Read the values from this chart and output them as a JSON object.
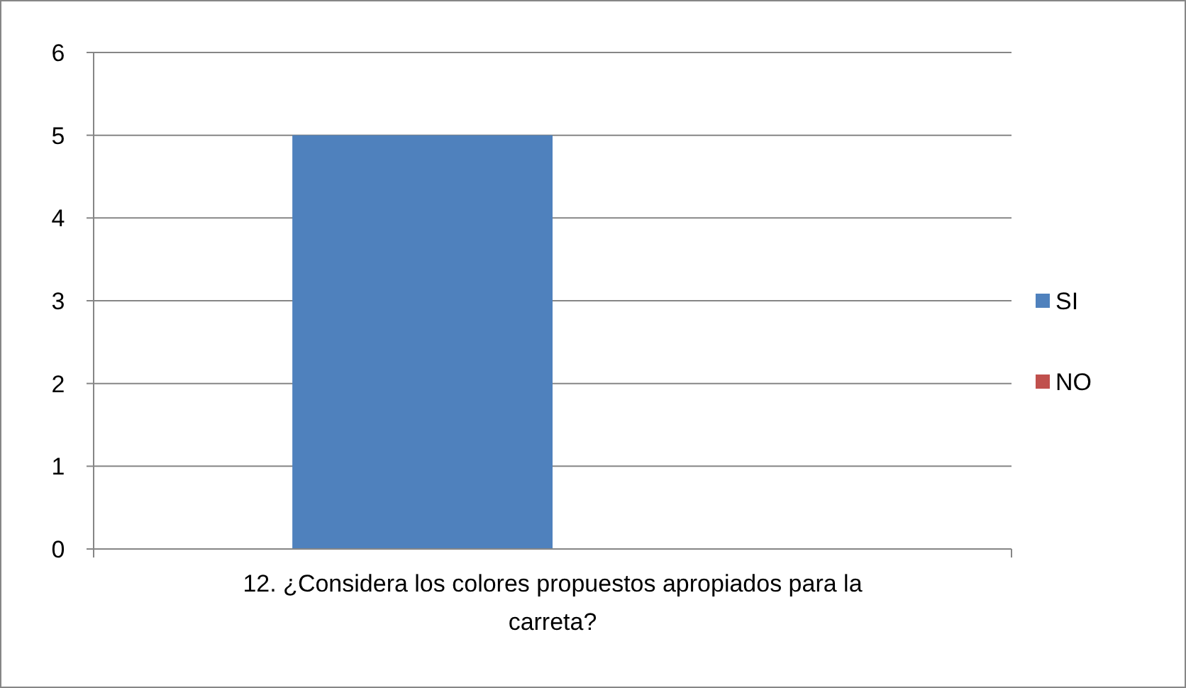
{
  "chart_data": {
    "type": "bar",
    "categories": [
      "12. ¿Considera los colores propuestos apropiados para la carreta?"
    ],
    "series": [
      {
        "name": "SI",
        "color": "#4f81bd",
        "values": [
          5
        ]
      },
      {
        "name": "NO",
        "color": "#c0504d",
        "values": [
          0
        ]
      }
    ],
    "ylim": [
      0,
      6
    ],
    "yticks": [
      0,
      1,
      2,
      3,
      4,
      5,
      6
    ],
    "grid": "y",
    "legend": "right"
  }
}
